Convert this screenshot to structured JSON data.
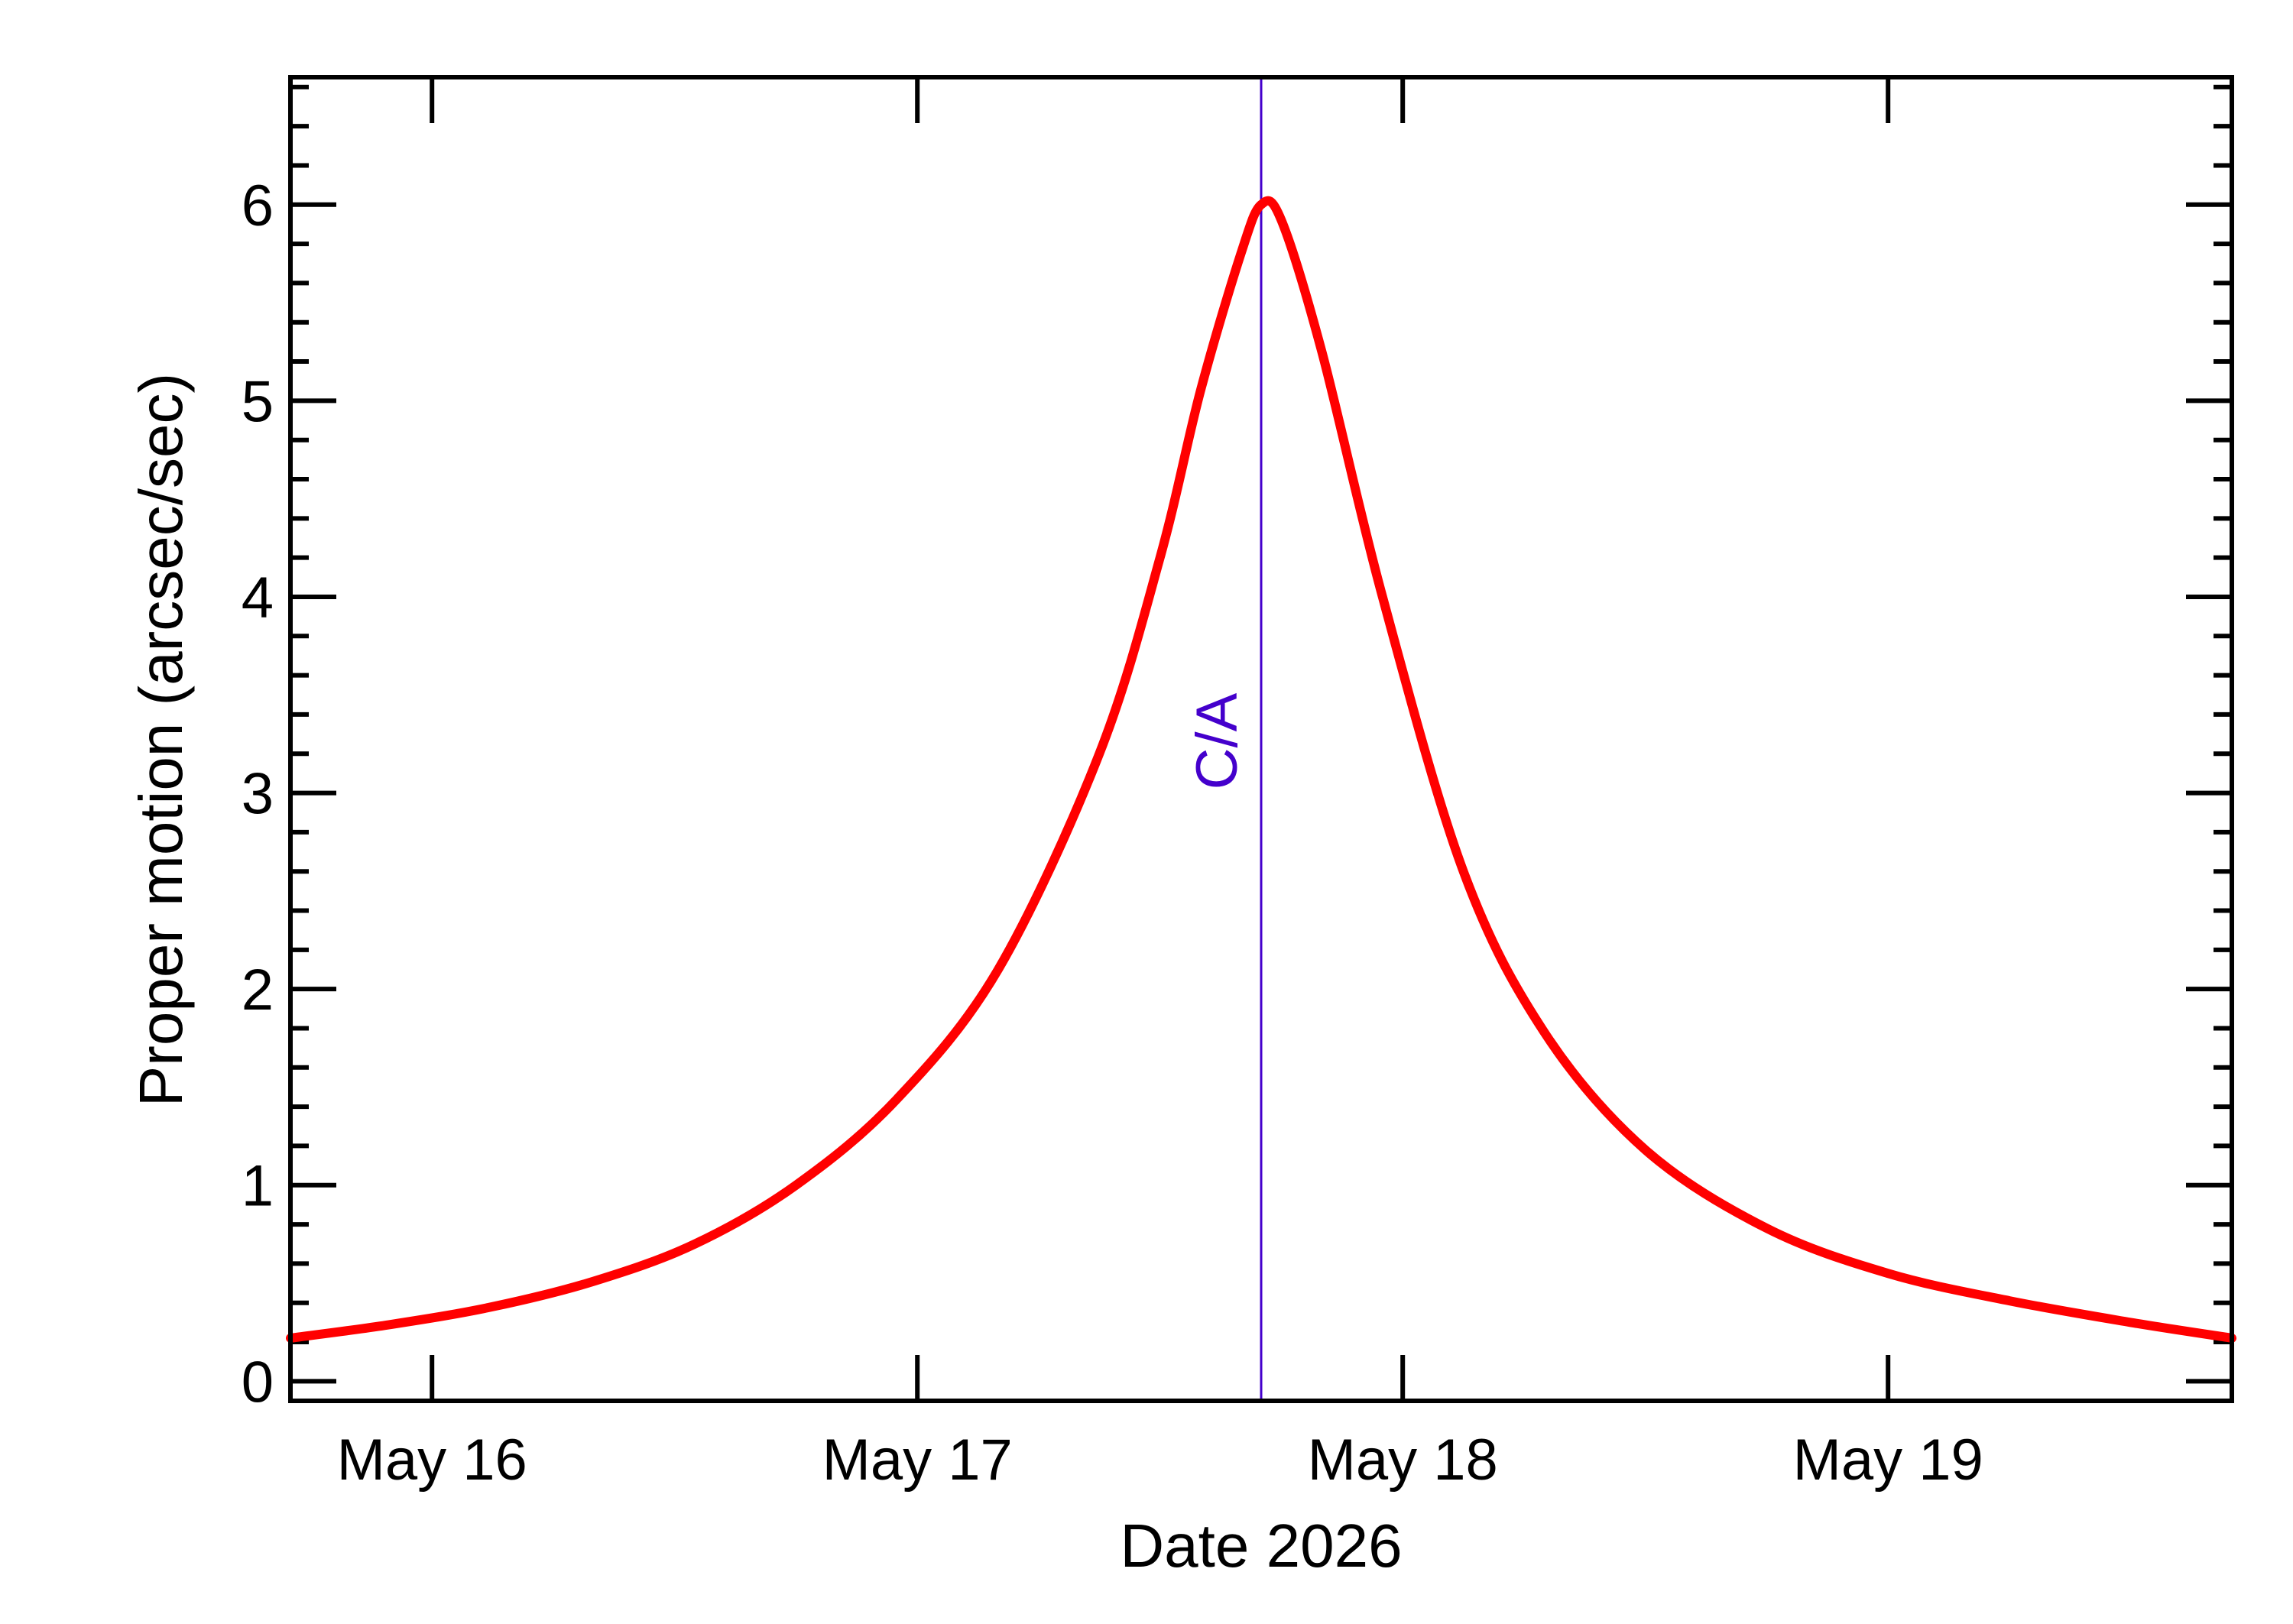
{
  "chart_data": {
    "type": "line",
    "title": "",
    "xlabel": "Date 2026",
    "ylabel": "Proper motion (arcsec/sec)",
    "x_ticks": [
      {
        "label": "May 16",
        "date": "2026-05-16"
      },
      {
        "label": "May 17",
        "date": "2026-05-17"
      },
      {
        "label": "May 18",
        "date": "2026-05-18"
      },
      {
        "label": "May 19",
        "date": "2026-05-19"
      }
    ],
    "y_ticks": [
      0,
      1,
      2,
      3,
      4,
      5,
      6
    ],
    "xlim": [
      "2026-05-15 17:00",
      "2026-05-19 17:00"
    ],
    "ylim": [
      -0.1,
      6.65
    ],
    "grid": false,
    "series": [
      {
        "color": "#ff0000",
        "points": [
          {
            "x": "2026-05-15 17:00",
            "y": 0.22
          },
          {
            "x": "2026-05-15 22:00",
            "y": 0.29
          },
          {
            "x": "2026-05-16 03:00",
            "y": 0.38
          },
          {
            "x": "2026-05-16 08:00",
            "y": 0.51
          },
          {
            "x": "2026-05-16 13:00",
            "y": 0.7
          },
          {
            "x": "2026-05-16 18:00",
            "y": 1.0
          },
          {
            "x": "2026-05-16 23:00",
            "y": 1.44
          },
          {
            "x": "2026-05-17 04:00",
            "y": 2.1
          },
          {
            "x": "2026-05-17 09:00",
            "y": 3.2
          },
          {
            "x": "2026-05-17 12:00",
            "y": 4.2
          },
          {
            "x": "2026-05-17 14:00",
            "y": 5.05
          },
          {
            "x": "2026-05-17 16:00",
            "y": 5.75
          },
          {
            "x": "2026-05-17 17:00",
            "y": 6.0
          },
          {
            "x": "2026-05-17 18:00",
            "y": 5.92
          },
          {
            "x": "2026-05-17 20:00",
            "y": 5.25
          },
          {
            "x": "2026-05-17 23:00",
            "y": 4.0
          },
          {
            "x": "2026-05-18 03:00",
            "y": 2.6
          },
          {
            "x": "2026-05-18 07:00",
            "y": 1.78
          },
          {
            "x": "2026-05-18 12:00",
            "y": 1.18
          },
          {
            "x": "2026-05-18 18:00",
            "y": 0.78
          },
          {
            "x": "2026-05-19 00:00",
            "y": 0.55
          },
          {
            "x": "2026-05-19 06:00",
            "y": 0.41
          },
          {
            "x": "2026-05-19 12:00",
            "y": 0.3
          },
          {
            "x": "2026-05-19 17:00",
            "y": 0.22
          }
        ]
      }
    ],
    "annotations": [
      {
        "label": "C/A",
        "x": "2026-05-17 17:00",
        "color": "#4400cc"
      }
    ]
  }
}
